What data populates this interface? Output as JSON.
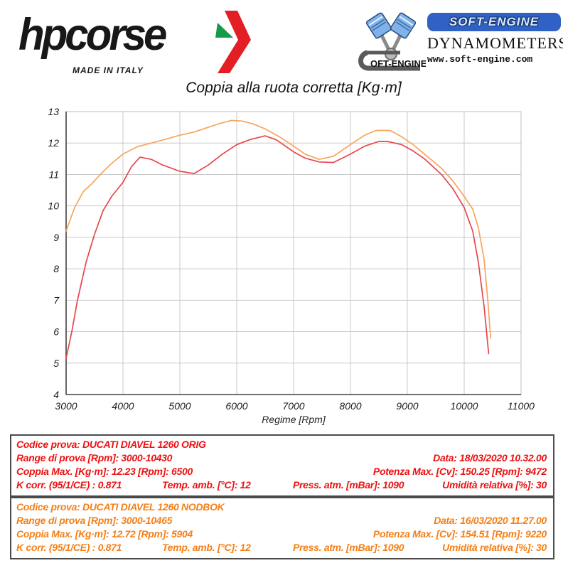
{
  "header": {
    "hpcorse": {
      "name": "hpcorse",
      "tagline": "MADE IN ITALY",
      "arrow_red": "#e31e24",
      "arrow_green": "#149a49"
    },
    "softengine": {
      "brand": "SOFT-ENGINE",
      "line1": "DYNAMOMETERS",
      "line2": "www.soft-engine.com",
      "pipe_text": "OFT-ENGINE",
      "brand_blue": "#2f62c4"
    }
  },
  "chart_data": {
    "type": "line",
    "title": "Coppia alla ruota corretta [Kg·m]",
    "xlabel": "Regime [Rpm]",
    "ylabel": "",
    "xlim": [
      3000,
      11000
    ],
    "ylim": [
      4,
      13
    ],
    "x_ticks": [
      3000,
      4000,
      5000,
      6000,
      7000,
      8000,
      9000,
      10000,
      11000
    ],
    "y_ticks": [
      4,
      5,
      6,
      7,
      8,
      9,
      10,
      11,
      12,
      13
    ],
    "grid": true,
    "legend_position": "none",
    "grid_color": "#c9c9c9",
    "axis_color": "#444444",
    "series": [
      {
        "name": "DUCATI DIAVEL 1260 ORIG",
        "color": "#e8454e",
        "points": [
          [
            3000,
            5.15
          ],
          [
            3100,
            6.0
          ],
          [
            3200,
            7.0
          ],
          [
            3350,
            8.2
          ],
          [
            3500,
            9.1
          ],
          [
            3650,
            9.85
          ],
          [
            3800,
            10.3
          ],
          [
            4000,
            10.75
          ],
          [
            4150,
            11.25
          ],
          [
            4300,
            11.55
          ],
          [
            4500,
            11.48
          ],
          [
            4700,
            11.3
          ],
          [
            5000,
            11.1
          ],
          [
            5250,
            11.03
          ],
          [
            5500,
            11.3
          ],
          [
            5750,
            11.65
          ],
          [
            6000,
            11.95
          ],
          [
            6250,
            12.12
          ],
          [
            6500,
            12.23
          ],
          [
            6700,
            12.1
          ],
          [
            7000,
            11.72
          ],
          [
            7200,
            11.52
          ],
          [
            7450,
            11.4
          ],
          [
            7700,
            11.38
          ],
          [
            8000,
            11.65
          ],
          [
            8250,
            11.9
          ],
          [
            8500,
            12.05
          ],
          [
            8650,
            12.05
          ],
          [
            8900,
            11.95
          ],
          [
            9100,
            11.75
          ],
          [
            9300,
            11.5
          ],
          [
            9600,
            11.0
          ],
          [
            9800,
            10.55
          ],
          [
            10000,
            9.95
          ],
          [
            10150,
            9.2
          ],
          [
            10250,
            8.2
          ],
          [
            10350,
            6.8
          ],
          [
            10430,
            5.3
          ]
        ]
      },
      {
        "name": "DUCATI DIAVEL 1260 NODBOK",
        "color": "#f6a55c",
        "points": [
          [
            3000,
            9.2
          ],
          [
            3150,
            9.95
          ],
          [
            3300,
            10.45
          ],
          [
            3450,
            10.7
          ],
          [
            3600,
            11.0
          ],
          [
            3800,
            11.35
          ],
          [
            4000,
            11.65
          ],
          [
            4250,
            11.88
          ],
          [
            4500,
            12.0
          ],
          [
            4750,
            12.12
          ],
          [
            5000,
            12.25
          ],
          [
            5250,
            12.35
          ],
          [
            5500,
            12.5
          ],
          [
            5700,
            12.62
          ],
          [
            5904,
            12.72
          ],
          [
            6100,
            12.7
          ],
          [
            6300,
            12.6
          ],
          [
            6500,
            12.45
          ],
          [
            6750,
            12.2
          ],
          [
            7000,
            11.9
          ],
          [
            7200,
            11.65
          ],
          [
            7450,
            11.48
          ],
          [
            7700,
            11.58
          ],
          [
            8000,
            11.95
          ],
          [
            8250,
            12.25
          ],
          [
            8450,
            12.4
          ],
          [
            8700,
            12.4
          ],
          [
            8900,
            12.2
          ],
          [
            9100,
            11.95
          ],
          [
            9300,
            11.65
          ],
          [
            9600,
            11.2
          ],
          [
            9800,
            10.8
          ],
          [
            10000,
            10.3
          ],
          [
            10150,
            9.9
          ],
          [
            10250,
            9.3
          ],
          [
            10350,
            8.3
          ],
          [
            10420,
            6.9
          ],
          [
            10465,
            5.8
          ]
        ]
      }
    ]
  },
  "tables": [
    {
      "color": "#ee1111",
      "codice": "Codice prova: DUCATI DIAVEL 1260 ORIG",
      "range": "Range di prova [Rpm]: 3000-10430",
      "data": "Data: 18/03/2020  10.32.00",
      "coppia": "Coppia Max. [Kg·m]: 12.23  [Rpm]: 6500",
      "potenza": "Potenza Max. [Cv]: 150.25  [Rpm]: 9472",
      "kcorr": "K corr. (95/1/CE) : 0.871",
      "temp": "Temp. amb. [°C]: 12",
      "press": "Press. atm. [mBar]: 1090",
      "umidita": "Umidità relativa [%]: 30"
    },
    {
      "color": "#f57f17",
      "codice": "Codice prova: DUCATI DIAVEL 1260 NODBOK",
      "range": "Range di prova [Rpm]: 3000-10465",
      "data": "Data: 16/03/2020  11.27.00",
      "coppia": "Coppia Max. [Kg·m]: 12.72  [Rpm]: 5904",
      "potenza": "Potenza Max. [Cv]: 154.51  [Rpm]: 9220",
      "kcorr": "K corr. (95/1/CE) : 0.871",
      "temp": "Temp. amb. [°C]: 12",
      "press": "Press. atm. [mBar]: 1090",
      "umidita": "Umidità relativa [%]: 30"
    }
  ]
}
